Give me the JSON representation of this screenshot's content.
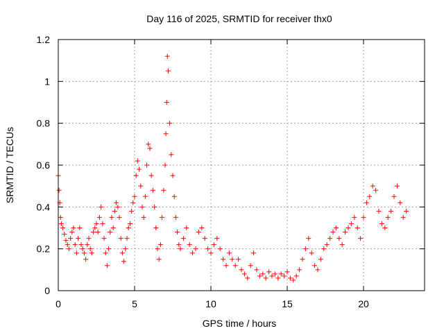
{
  "chart_data": {
    "type": "scatter",
    "title": "Day 116 of 2025, SRMTID for receiver thx0",
    "xlabel": "GPS time / hours",
    "ylabel": "SRMTID / TECUs",
    "xlim": [
      0,
      24
    ],
    "ylim": [
      0,
      1.2
    ],
    "xticks": [
      0,
      5,
      10,
      15,
      20
    ],
    "xtick_labels": [
      "0",
      "5",
      "10",
      "15",
      "20"
    ],
    "yticks": [
      0,
      0.2,
      0.4,
      0.6,
      0.8,
      1.0,
      1.2
    ],
    "ytick_labels": [
      "0",
      "0.2",
      "0.4",
      "0.6",
      "0.8",
      "1",
      "1.2"
    ],
    "grid": true,
    "marker": "+",
    "marker_color": "#ff0000",
    "series": [
      {
        "name": "thx0",
        "x": [
          0.0,
          0.05,
          0.1,
          0.15,
          0.2,
          0.3,
          0.4,
          0.5,
          0.6,
          0.7,
          0.8,
          0.9,
          1.0,
          1.1,
          1.2,
          1.3,
          1.4,
          1.5,
          1.6,
          1.7,
          1.8,
          1.9,
          2.0,
          2.1,
          2.2,
          2.3,
          2.4,
          2.5,
          2.6,
          2.7,
          2.8,
          2.9,
          3.0,
          3.1,
          3.2,
          3.3,
          3.4,
          3.5,
          3.6,
          3.7,
          3.8,
          3.9,
          4.0,
          4.1,
          4.2,
          4.3,
          4.4,
          4.5,
          4.6,
          4.7,
          4.8,
          4.9,
          5.0,
          5.1,
          5.2,
          5.3,
          5.4,
          5.5,
          5.6,
          5.7,
          5.8,
          5.9,
          6.0,
          6.1,
          6.2,
          6.3,
          6.4,
          6.5,
          6.6,
          6.7,
          6.8,
          6.9,
          7.0,
          7.05,
          7.1,
          7.15,
          7.2,
          7.3,
          7.4,
          7.5,
          7.6,
          7.7,
          7.8,
          7.9,
          8.0,
          8.2,
          8.4,
          8.6,
          8.8,
          9.0,
          9.2,
          9.4,
          9.6,
          9.8,
          10.0,
          10.2,
          10.4,
          10.6,
          10.8,
          11.0,
          11.2,
          11.4,
          11.6,
          11.8,
          12.0,
          12.2,
          12.4,
          12.6,
          12.8,
          13.0,
          13.2,
          13.4,
          13.6,
          13.8,
          14.0,
          14.2,
          14.4,
          14.6,
          14.8,
          15.0,
          15.2,
          15.4,
          15.6,
          15.8,
          16.0,
          16.2,
          16.4,
          16.6,
          16.8,
          17.0,
          17.2,
          17.4,
          17.6,
          17.8,
          18.0,
          18.2,
          18.4,
          18.6,
          18.8,
          19.0,
          19.2,
          19.4,
          19.6,
          19.8,
          20.0,
          20.2,
          20.4,
          20.6,
          20.8,
          21.0,
          21.2,
          21.4,
          21.6,
          21.8,
          22.0,
          22.2,
          22.4,
          22.6,
          22.8
        ],
        "y": [
          0.55,
          0.48,
          0.42,
          0.35,
          0.32,
          0.3,
          0.27,
          0.24,
          0.22,
          0.2,
          0.25,
          0.28,
          0.3,
          0.22,
          0.18,
          0.25,
          0.3,
          0.22,
          0.2,
          0.18,
          0.15,
          0.22,
          0.25,
          0.2,
          0.18,
          0.28,
          0.3,
          0.32,
          0.28,
          0.35,
          0.4,
          0.32,
          0.25,
          0.18,
          0.12,
          0.2,
          0.28,
          0.35,
          0.3,
          0.38,
          0.42,
          0.4,
          0.35,
          0.25,
          0.18,
          0.14,
          0.2,
          0.25,
          0.3,
          0.32,
          0.38,
          0.42,
          0.45,
          0.55,
          0.62,
          0.58,
          0.5,
          0.4,
          0.35,
          0.45,
          0.6,
          0.7,
          0.68,
          0.55,
          0.48,
          0.4,
          0.3,
          0.2,
          0.15,
          0.22,
          0.35,
          0.48,
          0.6,
          0.75,
          0.9,
          1.12,
          1.05,
          0.8,
          0.65,
          0.55,
          0.45,
          0.35,
          0.28,
          0.22,
          0.2,
          0.25,
          0.3,
          0.22,
          0.18,
          0.2,
          0.28,
          0.3,
          0.25,
          0.2,
          0.18,
          0.22,
          0.25,
          0.2,
          0.15,
          0.12,
          0.18,
          0.15,
          0.12,
          0.15,
          0.1,
          0.08,
          0.06,
          0.12,
          0.18,
          0.1,
          0.07,
          0.08,
          0.06,
          0.09,
          0.07,
          0.08,
          0.06,
          0.08,
          0.07,
          0.09,
          0.06,
          0.05,
          0.07,
          0.1,
          0.15,
          0.2,
          0.25,
          0.18,
          0.12,
          0.1,
          0.15,
          0.2,
          0.22,
          0.25,
          0.28,
          0.3,
          0.25,
          0.22,
          0.28,
          0.3,
          0.32,
          0.35,
          0.3,
          0.25,
          0.35,
          0.42,
          0.45,
          0.5,
          0.48,
          0.38,
          0.32,
          0.3,
          0.35,
          0.38,
          0.45,
          0.5,
          0.42,
          0.35,
          0.38
        ]
      }
    ]
  }
}
